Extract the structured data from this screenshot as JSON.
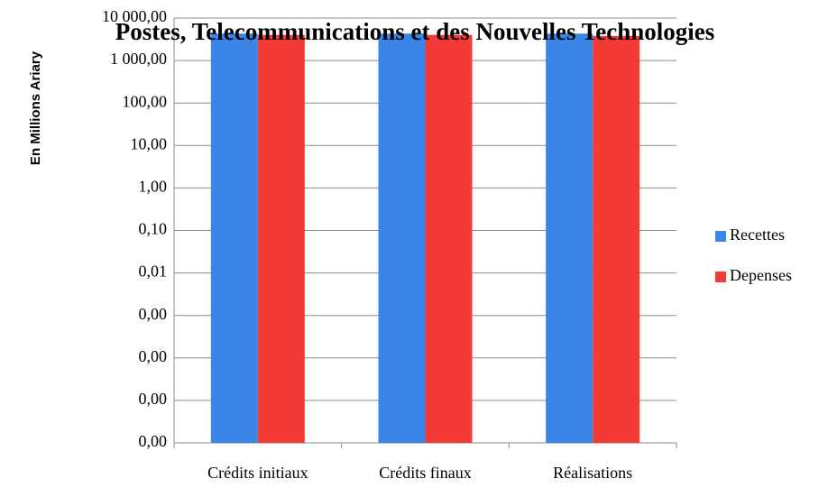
{
  "chart_data": {
    "type": "bar",
    "title": "Postes, Telecommunications et des Nouvelles Technologies",
    "y_label": "En Millions Ariary",
    "categories": [
      "Crédits initiaux",
      "Crédits finaux",
      "Réalisations"
    ],
    "series": [
      {
        "name": "Recettes",
        "color": "#3a86e8",
        "values": [
          4300,
          4300,
          4300
        ]
      },
      {
        "name": "Depenses",
        "color": "#f43a35",
        "values": [
          4000,
          4000,
          3800
        ]
      }
    ],
    "ylim": [
      1e-06,
      10000
    ],
    "log_scale": true,
    "yticks": [
      {
        "value": 1e-06,
        "label": "0,00"
      },
      {
        "value": 1e-05,
        "label": "0,00"
      },
      {
        "value": 0.0001,
        "label": "0,00"
      },
      {
        "value": 0.001,
        "label": "0,00"
      },
      {
        "value": 0.01,
        "label": "0,01"
      },
      {
        "value": 0.1,
        "label": "0,10"
      },
      {
        "value": 1,
        "label": "1,00"
      },
      {
        "value": 10,
        "label": "10,00"
      },
      {
        "value": 100,
        "label": "100,00"
      },
      {
        "value": 1000,
        "label": "1 000,00"
      },
      {
        "value": 10000,
        "label": "10 000,00"
      }
    ],
    "grid": true,
    "legend": "right"
  }
}
